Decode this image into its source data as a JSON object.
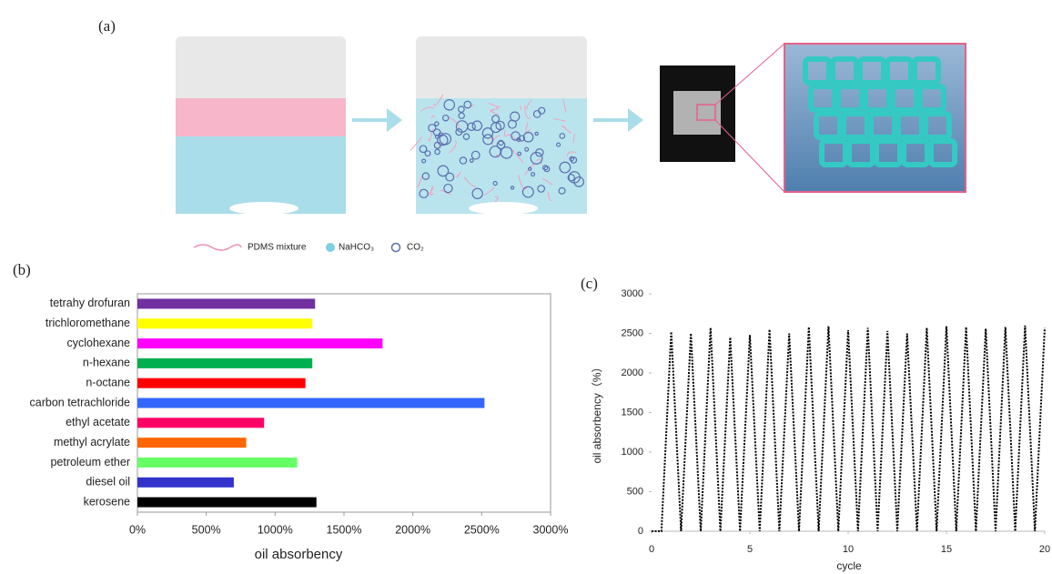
{
  "figure": {
    "panel": "(a)",
    "legend": [
      "PDMS mixture",
      "NaHCO₃",
      "CO₂"
    ]
  },
  "chart_data": [
    {
      "type": "bar",
      "orientation": "horizontal",
      "panel": "(b)",
      "xlabel": "oil absorbency",
      "categories": [
        "tetrahy drofuran",
        "trichloromethane",
        "cyclohexane",
        "n-hexane",
        "n-octane",
        "carbon tetrachloride",
        "ethyl acetate",
        "methyl acrylate",
        "petroleum ether",
        "diesel oil",
        "kerosene"
      ],
      "values": [
        1290,
        1270,
        1780,
        1270,
        1220,
        2520,
        920,
        790,
        1160,
        700,
        1300
      ],
      "colors": [
        "#7030a0",
        "#ffff00",
        "#ff00ff",
        "#00b050",
        "#ff0000",
        "#3366ff",
        "#ff0066",
        "#ff6600",
        "#66ff66",
        "#3333cc",
        "#000000"
      ],
      "xlim": [
        0,
        3000
      ],
      "xticks": [
        {
          "value": 0,
          "label": "0%"
        },
        {
          "value": 500,
          "label": "500%"
        },
        {
          "value": 1000,
          "label": "1000%"
        },
        {
          "value": 1500,
          "label": "1500%"
        },
        {
          "value": 2000,
          "label": "2000%"
        },
        {
          "value": 2500,
          "label": "2500%"
        },
        {
          "value": 3000,
          "label": "3000%"
        }
      ],
      "grid": false
    },
    {
      "type": "line",
      "panel": "(c)",
      "xlabel": "cycle",
      "ylabel": "oil absorbency（%）",
      "color": "#000000",
      "x": [
        0,
        0.5,
        1,
        1.5,
        2,
        2.5,
        3,
        3.5,
        4,
        4.5,
        5,
        5.5,
        6,
        6.5,
        7,
        7.5,
        8,
        8.5,
        9,
        9.5,
        10,
        10.5,
        11,
        11.5,
        12,
        12.5,
        13,
        13.5,
        14,
        14.5,
        15,
        15.5,
        16,
        16.5,
        17,
        17.5,
        18,
        18.5,
        19,
        19.5,
        20
      ],
      "values": [
        0,
        0,
        2520,
        0,
        2500,
        0,
        2570,
        0,
        2450,
        0,
        2480,
        0,
        2550,
        0,
        2500,
        0,
        2580,
        0,
        2590,
        0,
        2540,
        0,
        2570,
        0,
        2530,
        0,
        2500,
        0,
        2570,
        0,
        2590,
        0,
        2580,
        0,
        2560,
        0,
        2580,
        0,
        2600,
        0,
        2570
      ],
      "xlim": [
        0,
        20
      ],
      "xticks": [
        0,
        5,
        10,
        15,
        20
      ],
      "ylim": [
        0,
        3000
      ],
      "yticks": [
        0,
        500,
        1000,
        1500,
        2000,
        2500,
        3000
      ],
      "grid": false
    }
  ]
}
